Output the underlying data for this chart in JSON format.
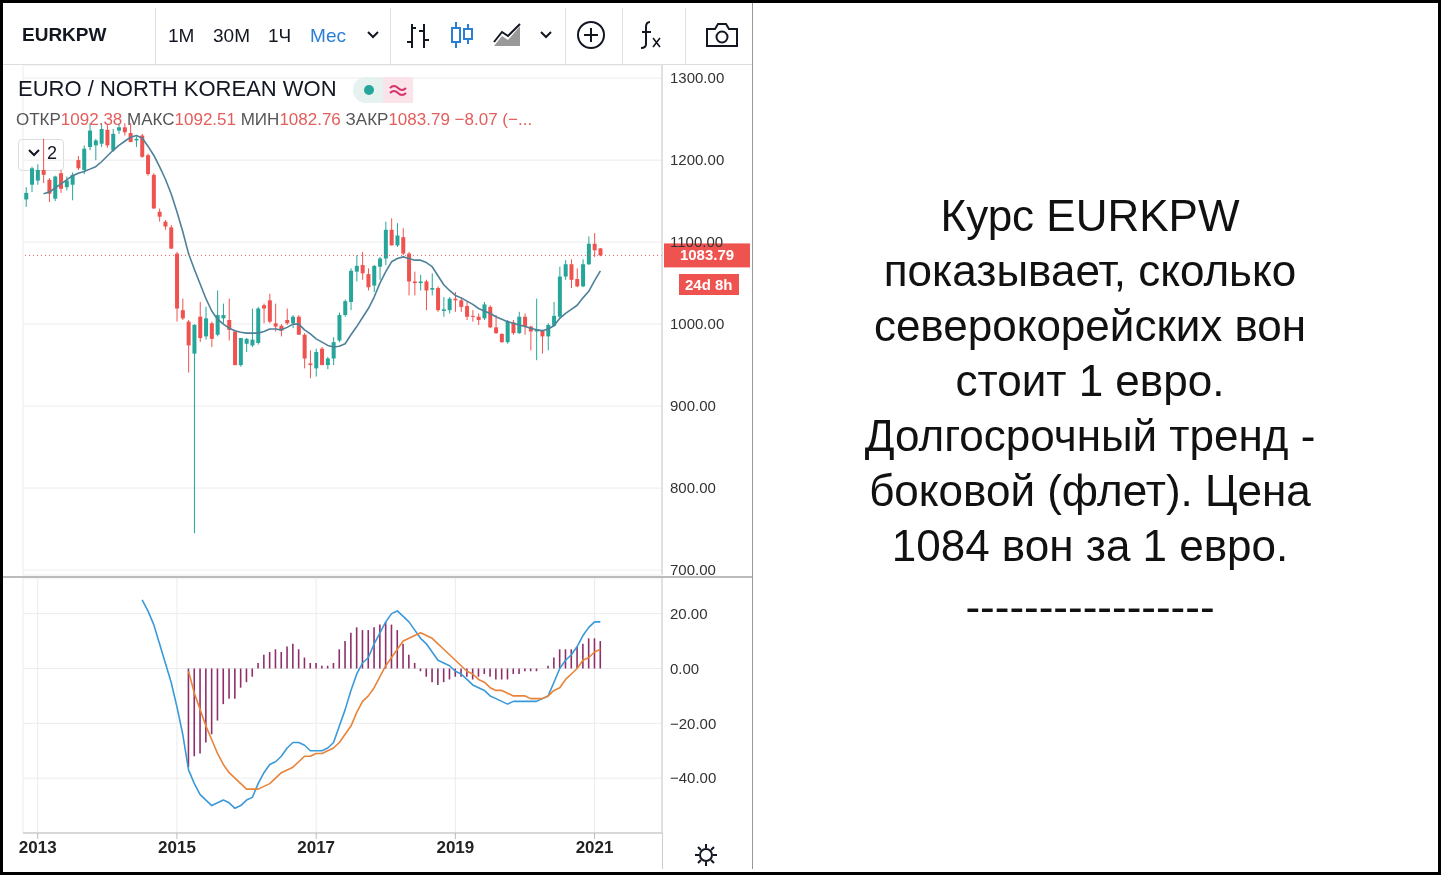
{
  "chart_data": [
    {
      "type": "candlestick",
      "title": "EURO / NORTH KOREAN WON",
      "annotations": [
        "EURKPW",
        "1М",
        "30М",
        "1Ч",
        "Мес",
        "ОТКР1092.38 МАКС1092.51 МИН1082.76 ЗАКР1083.79 −8.07 (−...",
        "2",
        "24d 8h",
        "Курс EURKPW показывает, сколько северокорейских вон стоит 1 евро. Долгосрочный тренд - боковой (флет). Цена 1084 вон за 1 евро.",
        "-----------------"
      ],
      "x": [
        "2012-11",
        "2012-12",
        "2013-01",
        "2013-02",
        "2013-03",
        "2013-04",
        "2013-05",
        "2013-06",
        "2013-07",
        "2013-08",
        "2013-09",
        "2013-10",
        "2013-11",
        "2013-12",
        "2014-01",
        "2014-02",
        "2014-03",
        "2014-04",
        "2014-05",
        "2014-06",
        "2014-07",
        "2014-08",
        "2014-09",
        "2014-10",
        "2014-11",
        "2014-12",
        "2015-01",
        "2015-02",
        "2015-03",
        "2015-04",
        "2015-05",
        "2015-06",
        "2015-07",
        "2015-08",
        "2015-09",
        "2015-10",
        "2015-11",
        "2015-12",
        "2016-01",
        "2016-02",
        "2016-03",
        "2016-04",
        "2016-05",
        "2016-06",
        "2016-07",
        "2016-08",
        "2016-09",
        "2016-10",
        "2016-11",
        "2016-12",
        "2017-01",
        "2017-02",
        "2017-03",
        "2017-04",
        "2017-05",
        "2017-06",
        "2017-07",
        "2017-08",
        "2017-09",
        "2017-10",
        "2017-11",
        "2017-12",
        "2018-01",
        "2018-02",
        "2018-03",
        "2018-04",
        "2018-05",
        "2018-06",
        "2018-07",
        "2018-08",
        "2018-09",
        "2018-10",
        "2018-11",
        "2018-12",
        "2019-01",
        "2019-02",
        "2019-03",
        "2019-04",
        "2019-05",
        "2019-06",
        "2019-07",
        "2019-08",
        "2019-09",
        "2019-10",
        "2019-11",
        "2019-12",
        "2020-01",
        "2020-02",
        "2020-03",
        "2020-04",
        "2020-05",
        "2020-06",
        "2020-07",
        "2020-08",
        "2020-09",
        "2020-10",
        "2020-11",
        "2020-12",
        "2021-01",
        "2021-02"
      ],
      "series": [
        {
          "ohlc": [
            [
              1152,
              1167,
              1143,
              1160
            ],
            [
              1170,
              1192,
              1161,
              1190
            ],
            [
              1175,
              1195,
              1170,
              1188
            ],
            [
              1188,
              1226,
              1172,
              1182
            ],
            [
              1176,
              1178,
              1149,
              1159
            ],
            [
              1153,
              1181,
              1150,
              1180
            ],
            [
              1184,
              1188,
              1160,
              1165
            ],
            [
              1167,
              1180,
              1163,
              1175
            ],
            [
              1170,
              1185,
              1151,
              1182
            ],
            [
              1200,
              1205,
              1188,
              1190
            ],
            [
              1188,
              1218,
              1183,
              1214
            ],
            [
              1216,
              1245,
              1212,
              1236
            ],
            [
              1218,
              1226,
              1200,
              1224
            ],
            [
              1220,
              1245,
              1216,
              1238
            ],
            [
              1237,
              1243,
              1215,
              1218
            ],
            [
              1212,
              1238,
              1210,
              1232
            ],
            [
              1236,
              1245,
              1232,
              1240
            ],
            [
              1240,
              1245,
              1230,
              1234
            ],
            [
              1233,
              1245,
              1222,
              1222
            ],
            [
              1224,
              1229,
              1216,
              1226
            ],
            [
              1230,
              1232,
              1203,
              1204
            ],
            [
              1206,
              1208,
              1181,
              1183
            ],
            [
              1182,
              1184,
              1141,
              1141
            ],
            [
              1137,
              1141,
              1125,
              1131
            ],
            [
              1125,
              1127,
              1115,
              1119
            ],
            [
              1118,
              1121,
              1092,
              1092
            ],
            [
              1086,
              1088,
              1003,
              1019
            ],
            [
              1017,
              1031,
              1005,
              1007
            ],
            [
              1003,
              1005,
              941,
              974
            ],
            [
              964,
              1000,
              745,
              999
            ],
            [
              1009,
              1027,
              978,
              983
            ],
            [
              985,
              1021,
              981,
              1007
            ],
            [
              1001,
              1003,
              972,
              982
            ],
            [
              987,
              1041,
              985,
              1011
            ],
            [
              1007,
              1025,
              1001,
              1011
            ],
            [
              1005,
              1031,
              980,
              993
            ],
            [
              991,
              993,
              950,
              950
            ],
            [
              950,
              983,
              948,
              983
            ],
            [
              976,
              983,
              966,
              982
            ],
            [
              974,
              1019,
              972,
              981
            ],
            [
              977,
              1021,
              975,
              1019
            ],
            [
              1023,
              1025,
              1001,
              1019
            ],
            [
              1029,
              1037,
              1001,
              1003
            ],
            [
              1001,
              1025,
              991,
              997
            ],
            [
              998,
              1000,
              985,
              992
            ],
            [
              1005,
              1019,
              999,
              1001
            ],
            [
              1001,
              1011,
              995,
              1009
            ],
            [
              1009,
              1011,
              987,
              987
            ],
            [
              987,
              989,
              946,
              958
            ],
            [
              952,
              968,
              934,
              950
            ],
            [
              946,
              970,
              936,
              966
            ],
            [
              970,
              972,
              950,
              950
            ],
            [
              950,
              960,
              945,
              958
            ],
            [
              958,
              984,
              950,
              978
            ],
            [
              980,
              1014,
              978,
              1011
            ],
            [
              1011,
              1030,
              1009,
              1028
            ],
            [
              1027,
              1068,
              1017,
              1065
            ],
            [
              1064,
              1084,
              1052,
              1071
            ],
            [
              1072,
              1088,
              1054,
              1062
            ],
            [
              1061,
              1068,
              1041,
              1045
            ],
            [
              1047,
              1072,
              1039,
              1071
            ],
            [
              1070,
              1082,
              1054,
              1080
            ],
            [
              1080,
              1125,
              1072,
              1115
            ],
            [
              1115,
              1129,
              1096,
              1096
            ],
            [
              1096,
              1123,
              1094,
              1108
            ],
            [
              1106,
              1117,
              1084,
              1086
            ],
            [
              1086,
              1088,
              1035,
              1052
            ],
            [
              1052,
              1064,
              1035,
              1050
            ],
            [
              1050,
              1060,
              1041,
              1052
            ],
            [
              1052,
              1054,
              1017,
              1041
            ],
            [
              1042,
              1062,
              1035,
              1044
            ],
            [
              1044,
              1046,
              1015,
              1017
            ],
            [
              1016,
              1033,
              1009,
              1018
            ],
            [
              1017,
              1033,
              1013,
              1031
            ],
            [
              1031,
              1039,
              1015,
              1029
            ],
            [
              1029,
              1033,
              1015,
              1021
            ],
            [
              1022,
              1027,
              1005,
              1009
            ],
            [
              1010,
              1017,
              1003,
              1009
            ],
            [
              1009,
              1013,
              999,
              1005
            ],
            [
              1007,
              1027,
              1005,
              1024
            ],
            [
              1021,
              1023,
              995,
              996
            ],
            [
              996,
              1011,
              988,
              989
            ],
            [
              988,
              989,
              977,
              978
            ],
            [
              978,
              1005,
              976,
              1003
            ],
            [
              1002,
              1005,
              987,
              989
            ],
            [
              989,
              1015,
              988,
              1009
            ],
            [
              1009,
              1013,
              987,
              997
            ],
            [
              997,
              998,
              968,
              991
            ],
            [
              991,
              1031,
              956,
              994
            ],
            [
              992,
              993,
              964,
              985
            ],
            [
              985,
              1001,
              968,
              999
            ],
            [
              998,
              1027,
              997,
              1010
            ],
            [
              1009,
              1070,
              1007,
              1058
            ],
            [
              1058,
              1078,
              1054,
              1073
            ],
            [
              1073,
              1079,
              1044,
              1054
            ],
            [
              1055,
              1068,
              1045,
              1046
            ],
            [
              1046,
              1079,
              1045,
              1073
            ],
            [
              1073,
              1107,
              1072,
              1098
            ],
            [
              1098,
              1111,
              1082,
              1090
            ],
            [
              1092.38,
              1092.51,
              1082.76,
              1083.79
            ]
          ],
          "colors": [
            "#26a69a",
            "#26a69a",
            "#26a69a",
            "#ef5350",
            "#ef5350",
            "#26a69a",
            "#ef5350",
            "#26a69a",
            "#26a69a",
            "#ef5350",
            "#26a69a",
            "#26a69a",
            "#26a69a",
            "#26a69a",
            "#ef5350",
            "#26a69a",
            "#26a69a",
            "#ef5350",
            "#ef5350",
            "#26a69a",
            "#ef5350",
            "#ef5350",
            "#ef5350",
            "#ef5350",
            "#ef5350",
            "#ef5350",
            "#ef5350",
            "#ef5350",
            "#ef5350",
            "#26a69a",
            "#ef5350",
            "#26a69a",
            "#ef5350",
            "#26a69a",
            "#26a69a",
            "#ef5350",
            "#ef5350",
            "#26a69a",
            "#26a69a",
            "#26a69a",
            "#26a69a",
            "#ef5350",
            "#ef5350",
            "#ef5350",
            "#ef5350",
            "#ef5350",
            "#26a69a",
            "#ef5350",
            "#ef5350",
            "#ef5350",
            "#26a69a",
            "#ef5350",
            "#26a69a",
            "#26a69a",
            "#26a69a",
            "#26a69a",
            "#26a69a",
            "#26a69a",
            "#ef5350",
            "#ef5350",
            "#26a69a",
            "#26a69a",
            "#26a69a",
            "#ef5350",
            "#26a69a",
            "#ef5350",
            "#ef5350",
            "#ef5350",
            "#26a69a",
            "#ef5350",
            "#26a69a",
            "#ef5350",
            "#26a69a",
            "#26a69a",
            "#ef5350",
            "#ef5350",
            "#ef5350",
            "#ef5350",
            "#ef5350",
            "#26a69a",
            "#ef5350",
            "#ef5350",
            "#ef5350",
            "#26a69a",
            "#ef5350",
            "#26a69a",
            "#ef5350",
            "#ef5350",
            "#26a69a",
            "#ef5350",
            "#26a69a",
            "#26a69a",
            "#26a69a",
            "#26a69a",
            "#ef5350",
            "#ef5350",
            "#26a69a",
            "#26a69a",
            "#ef5350",
            "#ef5350"
          ]
        },
        {
          "type": "line",
          "color": "#4f8099",
          "values": [
            null,
            null,
            null,
            1159,
            1161,
            1166,
            1171,
            1176,
            1181,
            1184,
            1186,
            1189,
            1192,
            1198,
            1205,
            1212,
            1218,
            1223,
            1228,
            1230,
            1227,
            1217,
            1206,
            1192,
            1177,
            1159,
            1137,
            1113,
            1086,
            1067,
            1049,
            1031,
            1016,
            1006,
            1000,
            995,
            992,
            990,
            989,
            989,
            989,
            991,
            994,
            994,
            993,
            996,
            1000,
            1000,
            993,
            988,
            982,
            978,
            974,
            972,
            973,
            976,
            987,
            997,
            1008,
            1019,
            1033,
            1050,
            1064,
            1076,
            1080,
            1082,
            1080,
            1078,
            1078,
            1075,
            1070,
            1059,
            1048,
            1041,
            1035,
            1032,
            1028,
            1024,
            1019,
            1016,
            1013,
            1009,
            1006,
            1003,
            1001,
            999,
            997,
            995,
            993,
            992,
            994,
            998,
            1007,
            1013,
            1018,
            1023,
            1032,
            1040,
            1053,
            1065
          ]
        }
      ],
      "xlim": [
        "2012-10-15",
        "2021-12-20"
      ],
      "xticks": [
        "2013",
        "2015",
        "2017",
        "2019",
        "2021"
      ],
      "ylim": [
        694,
        1316
      ],
      "yticks": [
        {
          "value": 700,
          "label": "700.00"
        },
        {
          "value": 800,
          "label": "800.00"
        },
        {
          "value": 900,
          "label": "900.00"
        },
        {
          "value": 1000,
          "label": "1000.00"
        },
        {
          "value": 1100,
          "label": "1100.00"
        },
        {
          "value": 1200,
          "label": "1200.00"
        },
        {
          "value": 1300,
          "label": "1300.00"
        }
      ],
      "ref_lines": [
        {
          "axis": "y",
          "value": 1083.79,
          "label": "1083.79",
          "color": "#ef5350",
          "line_style": "dotted"
        }
      ],
      "grid": true,
      "tick_labels": "y"
    },
    {
      "type": "line",
      "series": [
        {
          "type": "bar",
          "color": "#8e2f6a",
          "x": [
            "2015-03",
            "2015-04",
            "2015-05",
            "2015-06",
            "2015-07",
            "2015-08",
            "2015-09",
            "2015-10",
            "2015-11",
            "2015-12",
            "2016-01",
            "2016-02",
            "2016-03",
            "2016-04",
            "2016-05",
            "2016-06",
            "2016-07",
            "2016-08",
            "2016-09",
            "2016-10",
            "2016-11",
            "2016-12",
            "2017-01",
            "2017-02",
            "2017-03",
            "2017-04",
            "2017-05",
            "2017-06",
            "2017-07",
            "2017-08",
            "2017-09",
            "2017-10",
            "2017-11",
            "2017-12",
            "2018-01",
            "2018-02",
            "2018-03",
            "2018-04",
            "2018-05",
            "2018-06",
            "2018-07",
            "2018-08",
            "2018-09",
            "2018-10",
            "2018-11",
            "2018-12",
            "2019-01",
            "2019-02",
            "2019-03",
            "2019-04",
            "2019-05",
            "2019-06",
            "2019-07",
            "2019-08",
            "2019-09",
            "2019-10",
            "2019-11",
            "2019-12",
            "2020-01",
            "2020-02",
            "2020-03",
            "2020-04",
            "2020-05",
            "2020-06",
            "2020-07",
            "2020-08",
            "2020-09",
            "2020-10",
            "2020-11",
            "2020-12",
            "2021-01",
            "2021-02"
          ],
          "values": [
            -36,
            -32,
            -31,
            -27,
            -24,
            -19,
            -13,
            -11,
            -11,
            -7,
            -5,
            -3,
            2,
            5,
            6,
            7,
            6,
            8,
            9,
            7,
            4,
            2,
            2,
            1,
            1,
            2,
            7,
            10,
            13,
            15,
            14,
            14,
            15,
            16,
            17,
            16,
            14,
            9,
            5,
            2,
            -1,
            -3,
            -5,
            -6,
            -5,
            -4,
            -3,
            -3,
            -3,
            -4,
            -3,
            -2,
            -3,
            -4,
            -4,
            -4,
            -2,
            -2,
            -1,
            -1,
            -1,
            0,
            1,
            4,
            7,
            7,
            7,
            8,
            9,
            11,
            11,
            10
          ]
        },
        {
          "color": "#3a9ad9",
          "x": [
            "2014-07",
            "2014-08",
            "2014-09",
            "2014-10",
            "2014-11",
            "2014-12",
            "2015-01",
            "2015-02",
            "2015-03",
            "2015-04",
            "2015-05",
            "2015-06",
            "2015-07",
            "2015-08",
            "2015-09",
            "2015-10",
            "2015-11",
            "2015-12",
            "2016-01",
            "2016-02",
            "2016-03",
            "2016-04",
            "2016-05",
            "2016-06",
            "2016-07",
            "2016-08",
            "2016-09",
            "2016-10",
            "2016-11",
            "2016-12",
            "2017-01",
            "2017-02",
            "2017-03",
            "2017-04",
            "2017-05",
            "2017-06",
            "2017-07",
            "2017-08",
            "2017-09",
            "2017-10",
            "2017-11",
            "2017-12",
            "2018-01",
            "2018-02",
            "2018-03",
            "2018-04",
            "2018-05",
            "2018-06",
            "2018-07",
            "2018-08",
            "2018-09",
            "2018-10",
            "2018-11",
            "2018-12",
            "2019-01",
            "2019-02",
            "2019-03",
            "2019-04",
            "2019-05",
            "2019-06",
            "2019-07",
            "2019-08",
            "2019-09",
            "2019-10",
            "2019-11",
            "2019-12",
            "2020-01",
            "2020-02",
            "2020-03",
            "2020-04",
            "2020-05",
            "2020-06",
            "2020-07",
            "2020-08",
            "2020-09",
            "2020-10",
            "2020-11",
            "2020-12",
            "2021-01",
            "2021-02"
          ],
          "values": [
            25,
            21,
            16,
            9,
            2,
            -5,
            -14,
            -24,
            -37,
            -42,
            -46,
            -48,
            -50,
            -49,
            -48,
            -49,
            -51,
            -50,
            -48,
            -47,
            -42,
            -38,
            -35,
            -34,
            -32,
            -29,
            -27,
            -27,
            -28,
            -30,
            -30,
            -30,
            -29,
            -27,
            -21,
            -15,
            -8,
            -2,
            2,
            4,
            9,
            13,
            17,
            20,
            21,
            19,
            17,
            14,
            11,
            9,
            6,
            3,
            2,
            1,
            -1,
            -2,
            -4,
            -6,
            -7,
            -8,
            -10,
            -11,
            -12,
            -13,
            -12,
            -12,
            -12,
            -12,
            -12,
            -11,
            -10,
            -5,
            0,
            3,
            5,
            8,
            12,
            15,
            17,
            17
          ]
        },
        {
          "color": "#e8833a",
          "x": [
            "2015-03",
            "2015-04",
            "2015-05",
            "2015-06",
            "2015-07",
            "2015-08",
            "2015-09",
            "2015-10",
            "2015-11",
            "2015-12",
            "2016-01",
            "2016-02",
            "2016-03",
            "2016-04",
            "2016-05",
            "2016-06",
            "2016-07",
            "2016-08",
            "2016-09",
            "2016-10",
            "2016-11",
            "2016-12",
            "2017-01",
            "2017-02",
            "2017-03",
            "2017-04",
            "2017-05",
            "2017-06",
            "2017-07",
            "2017-08",
            "2017-09",
            "2017-10",
            "2017-11",
            "2017-12",
            "2018-01",
            "2018-02",
            "2018-03",
            "2018-04",
            "2018-05",
            "2018-06",
            "2018-07",
            "2018-08",
            "2018-09",
            "2018-10",
            "2018-11",
            "2018-12",
            "2019-01",
            "2019-02",
            "2019-03",
            "2019-04",
            "2019-05",
            "2019-06",
            "2019-07",
            "2019-08",
            "2019-09",
            "2019-10",
            "2019-11",
            "2019-12",
            "2020-01",
            "2020-02",
            "2020-03",
            "2020-04",
            "2020-05",
            "2020-06",
            "2020-07",
            "2020-08",
            "2020-09",
            "2020-10",
            "2020-11",
            "2020-12",
            "2021-01",
            "2021-02"
          ],
          "values": [
            -1,
            -9,
            -15,
            -21,
            -26,
            -31,
            -35,
            -38,
            -40,
            -42,
            -44,
            -44,
            -44,
            -43,
            -42,
            -40,
            -38,
            -37,
            -36,
            -34,
            -32,
            -32,
            -31,
            -31,
            -30,
            -29,
            -27,
            -24,
            -21,
            -16,
            -12,
            -10,
            -7,
            -3,
            1,
            4,
            7,
            10,
            11,
            12,
            13,
            12,
            11,
            9,
            7,
            5,
            3,
            1,
            -1,
            -2,
            -4,
            -5,
            -7,
            -8,
            -8,
            -9,
            -10,
            -10,
            -10,
            -11,
            -11,
            -11,
            -10,
            -8,
            -7,
            -4,
            -2,
            0,
            3,
            4,
            6,
            7
          ]
        }
      ],
      "xlim": [
        "2012-10-15",
        "2021-12-20"
      ],
      "xticks": [
        "2013",
        "2015",
        "2017",
        "2019",
        "2021"
      ],
      "ylim": [
        -60,
        33
      ],
      "yticks": [
        {
          "value": -40,
          "label": "−40.00"
        },
        {
          "value": -20,
          "label": "−20.00"
        },
        {
          "value": 0,
          "label": "0.00"
        },
        {
          "value": 20,
          "label": "20.00"
        }
      ],
      "grid": true
    }
  ]
}
